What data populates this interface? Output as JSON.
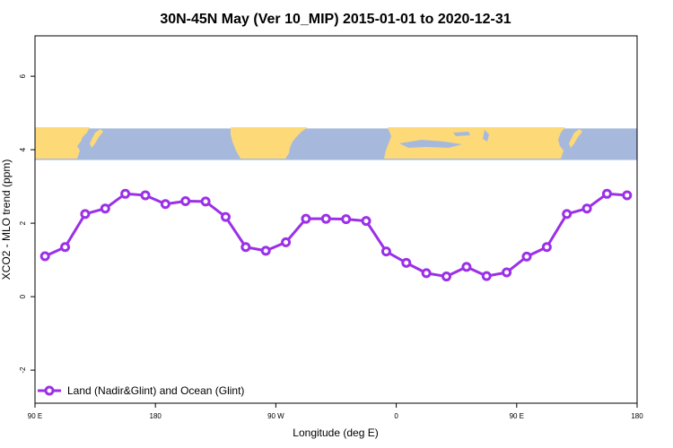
{
  "chart_data": {
    "type": "line",
    "title": "30N-45N May (Ver 10_MIP)   2015-01-01 to 2020-12-31",
    "xlabel": "Longitude (deg E)",
    "ylabel": "XCO2 - MLO trend (ppm)",
    "xlim": [
      90,
      450
    ],
    "ylim": [
      -2.9,
      7.1
    ],
    "x_ticks": [
      {
        "value": 90,
        "label": "90 E"
      },
      {
        "value": 162,
        "label": "180"
      },
      {
        "value": 234,
        "label": "90 W"
      },
      {
        "value": 306,
        "label": "0"
      },
      {
        "value": 378,
        "label": "90 E"
      },
      {
        "value": 450,
        "label": "180"
      }
    ],
    "y_ticks": [
      {
        "value": -2,
        "label": "-2"
      },
      {
        "value": 0,
        "label": "0"
      },
      {
        "value": 2,
        "label": "2"
      },
      {
        "value": 4,
        "label": "4"
      },
      {
        "value": 6,
        "label": "6"
      }
    ],
    "map_strip": {
      "y_bottom": 3.72,
      "y_top": 4.58,
      "ocean_color": "#a6b9dc",
      "land_color": "#fdd978"
    },
    "series": [
      {
        "name": "Land (Nadir&Glint) and Ocean (Glint)",
        "color": "#9b30e8",
        "x": [
          96,
          108,
          120,
          132,
          144,
          156,
          168,
          180,
          192,
          204,
          216,
          228,
          240,
          252,
          264,
          276,
          288,
          300,
          312,
          324,
          336,
          348,
          360,
          372,
          384,
          396,
          408,
          420,
          432,
          444
        ],
        "values": [
          1.1,
          1.35,
          2.25,
          2.4,
          2.8,
          2.76,
          2.52,
          2.6,
          2.59,
          2.17,
          1.35,
          1.25,
          1.48,
          2.12,
          2.12,
          2.11,
          2.06,
          1.23,
          0.92,
          0.64,
          0.55,
          0.81,
          0.56,
          0.66,
          1.09,
          1.35,
          2.25,
          2.4,
          2.8,
          2.76
        ]
      }
    ],
    "legend_position": "bottom-left"
  }
}
